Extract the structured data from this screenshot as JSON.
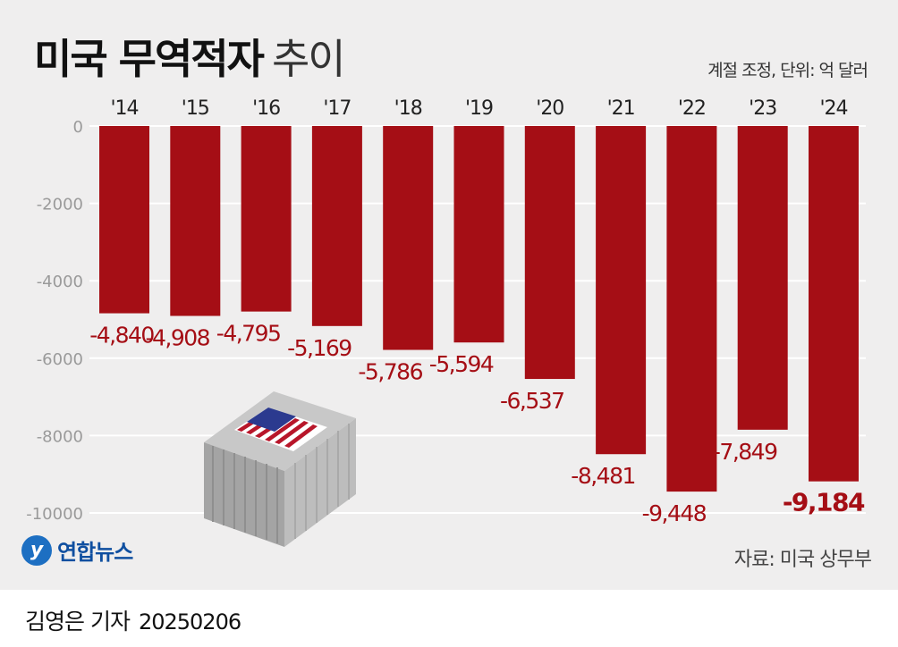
{
  "title_bold": "미국 무역적자",
  "title_light": "추이",
  "note": "계절 조정, 단위: 억 달러",
  "source": "자료: 미국 상무부",
  "logo": {
    "text": "연합뉴스",
    "mark": "y"
  },
  "author": "김영은 기자",
  "date": "20250206",
  "colors": {
    "bar": "#a50e15",
    "label": "#a50e15",
    "grid": "#ffffff",
    "background": "#efeeee"
  },
  "icons": [
    "container-icon",
    "us-flag-icon"
  ],
  "chart_data": {
    "type": "bar",
    "categories": [
      "'14",
      "'15",
      "'16",
      "'17",
      "'18",
      "'19",
      "'20",
      "'21",
      "'22",
      "'23",
      "'24"
    ],
    "values": [
      -4840,
      -4908,
      -4795,
      -5169,
      -5786,
      -5594,
      -6537,
      -8481,
      -9448,
      -7849,
      -9184
    ],
    "value_labels": [
      "-4,840",
      "-4,908",
      "-4,795",
      "-5,169",
      "-5,786",
      "-5,594",
      "-6,537",
      "-8,481",
      "-9,448",
      "-7,849",
      "-9,184"
    ],
    "highlight_last": true,
    "yticks": [
      "0",
      "-2000",
      "-4000",
      "-6000",
      "-8000",
      "-10000"
    ],
    "ytick_values": [
      0,
      -2000,
      -4000,
      -6000,
      -8000,
      -10000
    ],
    "ylim": [
      -10000,
      0
    ],
    "x_axis_position": "top",
    "grid": true
  }
}
